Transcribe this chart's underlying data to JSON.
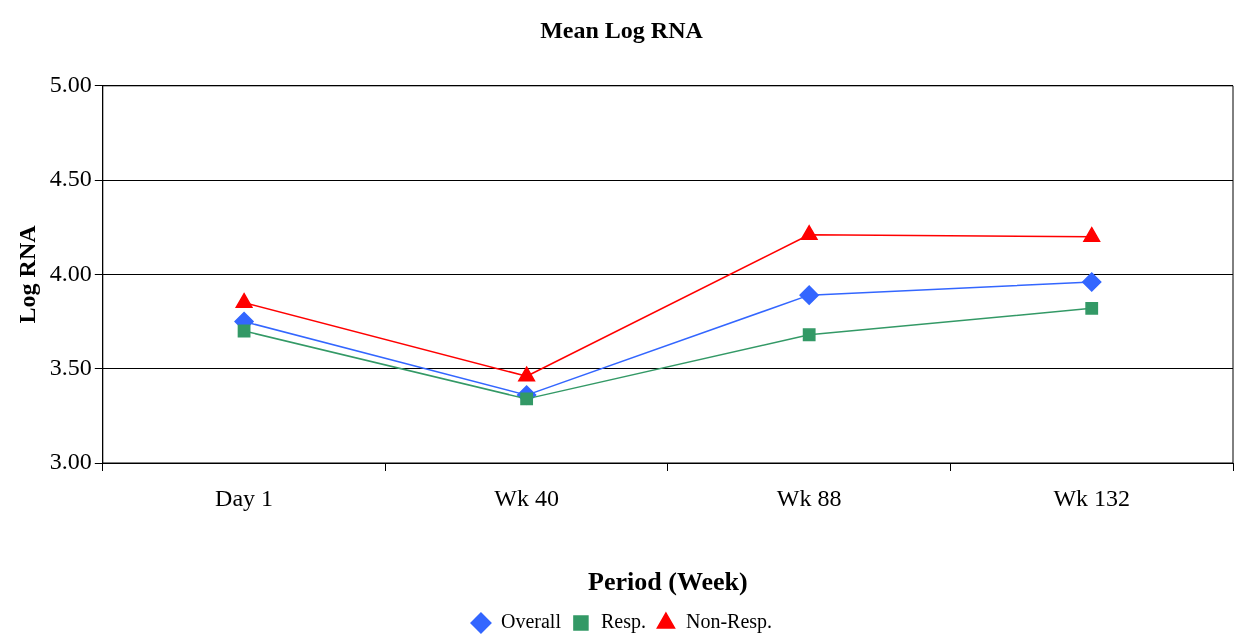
{
  "chart_data": {
    "type": "line",
    "title": "Mean Log RNA",
    "xlabel": "Period (Week)",
    "ylabel": "Log RNA",
    "categories": [
      "Day 1",
      "Wk 40",
      "Wk 88",
      "Wk 132"
    ],
    "series": [
      {
        "name": "Overall",
        "color": "#3366ff",
        "marker": "diamond",
        "values": [
          3.75,
          3.36,
          3.89,
          3.96
        ]
      },
      {
        "name": "Resp.",
        "color": "#339966",
        "marker": "square",
        "values": [
          3.7,
          3.34,
          3.68,
          3.82
        ]
      },
      {
        "name": "Non-Resp.",
        "color": "#ff0000",
        "marker": "triangle",
        "values": [
          3.85,
          3.46,
          4.21,
          4.2
        ]
      }
    ],
    "ylim": [
      3,
      5
    ],
    "yticks": [
      {
        "value": 3,
        "label": "3.00"
      },
      {
        "value": 3.5,
        "label": "3.50"
      },
      {
        "value": 4,
        "label": "4.00"
      },
      {
        "value": 4.5,
        "label": "4.50"
      },
      {
        "value": 5,
        "label": "5.00"
      }
    ],
    "grid": "y",
    "legend": "bottom",
    "line_style": "solid"
  }
}
